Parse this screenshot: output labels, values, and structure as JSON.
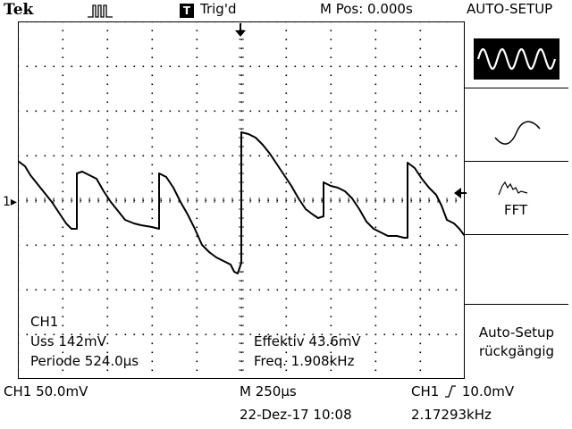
{
  "header": {
    "brand": "Tek",
    "acquisition_icon": "acquisition-run-icon",
    "trigger_badge": "T",
    "trigger_status": "Trig'd",
    "horizontal_position": "M Pos: 0.000s",
    "menu_title": "AUTO-SETUP"
  },
  "side_menu": {
    "items": [
      {
        "icon": "multi-cycle-sine-icon",
        "selected": true
      },
      {
        "icon": "single-cycle-sine-icon",
        "selected": false
      },
      {
        "icon": "fft-spectrum-icon",
        "label": "FFT",
        "selected": false
      },
      {
        "label_line1": "Auto-Setup",
        "label_line2": "rückgängig"
      }
    ]
  },
  "measurements": {
    "channel": "CH1",
    "uss": "Uss 142mV",
    "periode": "Periode 524.0µs",
    "effektiv": "Effektiv 43.6mV",
    "freq": "Freq. 1.908kHz"
  },
  "channel_marker": "1",
  "status_bar": {
    "ch1_scale": "CH1  50.0mV",
    "timebase": "M 250µs",
    "trigger": "CH1",
    "trigger_level": "10.0mV",
    "date": "22-Dez-17 10:08",
    "trigger_freq": "2.17293kHz"
  },
  "colors": {
    "background": "#ffffff",
    "trace": "#000000",
    "grid": "#000000"
  }
}
